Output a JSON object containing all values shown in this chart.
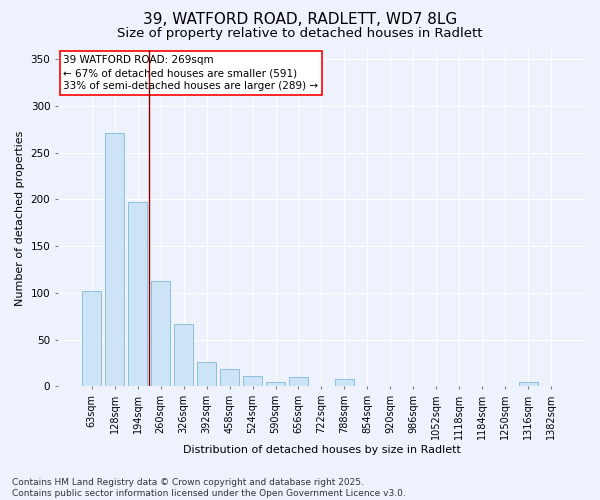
{
  "title1": "39, WATFORD ROAD, RADLETT, WD7 8LG",
  "title2": "Size of property relative to detached houses in Radlett",
  "xlabel": "Distribution of detached houses by size in Radlett",
  "ylabel": "Number of detached properties",
  "categories": [
    "63sqm",
    "128sqm",
    "194sqm",
    "260sqm",
    "326sqm",
    "392sqm",
    "458sqm",
    "524sqm",
    "590sqm",
    "656sqm",
    "722sqm",
    "788sqm",
    "854sqm",
    "920sqm",
    "986sqm",
    "1052sqm",
    "1118sqm",
    "1184sqm",
    "1250sqm",
    "1316sqm",
    "1382sqm"
  ],
  "values": [
    102,
    271,
    197,
    113,
    67,
    26,
    18,
    11,
    5,
    10,
    0,
    8,
    0,
    0,
    0,
    0,
    0,
    0,
    0,
    5,
    0
  ],
  "bar_color": "#cce4f5",
  "bar_edge_color": "#7fb9d9",
  "annotation_text_line1": "39 WATFORD ROAD: 269sqm",
  "annotation_text_line2": "← 67% of detached houses are smaller (591)",
  "annotation_text_line3": "33% of semi-detached houses are larger (289) →",
  "vertical_line_x": 2.5,
  "ylim": [
    0,
    360
  ],
  "yticks": [
    0,
    50,
    100,
    150,
    200,
    250,
    300,
    350
  ],
  "footnote_line1": "Contains HM Land Registry data © Crown copyright and database right 2025.",
  "footnote_line2": "Contains public sector information licensed under the Open Government Licence v3.0.",
  "background_color": "#eef2fc",
  "grid_color": "#ffffff",
  "title_fontsize": 11,
  "subtitle_fontsize": 9.5,
  "annotation_fontsize": 7.5,
  "footnote_fontsize": 6.5,
  "axis_label_fontsize": 8,
  "tick_fontsize": 7
}
